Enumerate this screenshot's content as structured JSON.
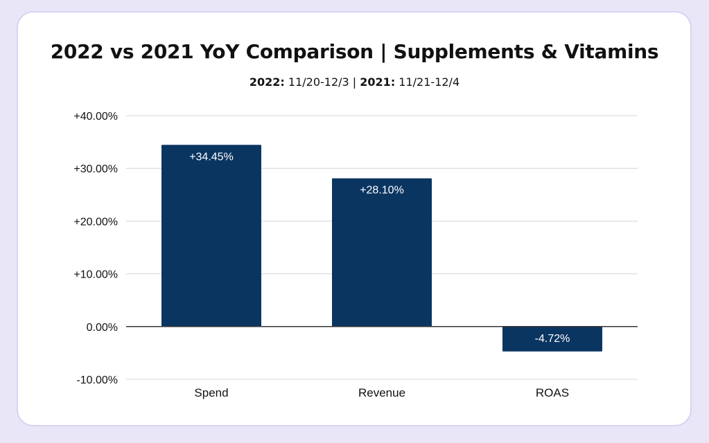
{
  "chart_data": {
    "type": "bar",
    "title": "2022 vs 2021 YoY Comparison | Supplements & Vitamins",
    "subtitle": {
      "label_2022": "2022:",
      "range_2022": " 11/20-12/3 | ",
      "label_2021": "2021:",
      "range_2021": " 11/21-12/4"
    },
    "xlabel": "",
    "ylabel": "",
    "categories": [
      "Spend",
      "Revenue",
      "ROAS"
    ],
    "values": [
      34.45,
      28.1,
      -4.72
    ],
    "data_labels": [
      "+34.45%",
      "+28.10%",
      "-4.72%"
    ],
    "ylim": [
      -10,
      40
    ],
    "y_ticks": [
      40,
      30,
      20,
      10,
      0,
      -10
    ],
    "y_tick_labels": [
      "+40.00%",
      "+30.00%",
      "+20.00%",
      "+10.00%",
      "0.00%",
      "-10.00%"
    ],
    "grid": true,
    "legend": "none",
    "colors": {
      "bar": "#0b3561",
      "grid": "#d4d4d4",
      "zero_line": "#333333",
      "label_text": "#ffffff",
      "text": "#111111"
    }
  }
}
